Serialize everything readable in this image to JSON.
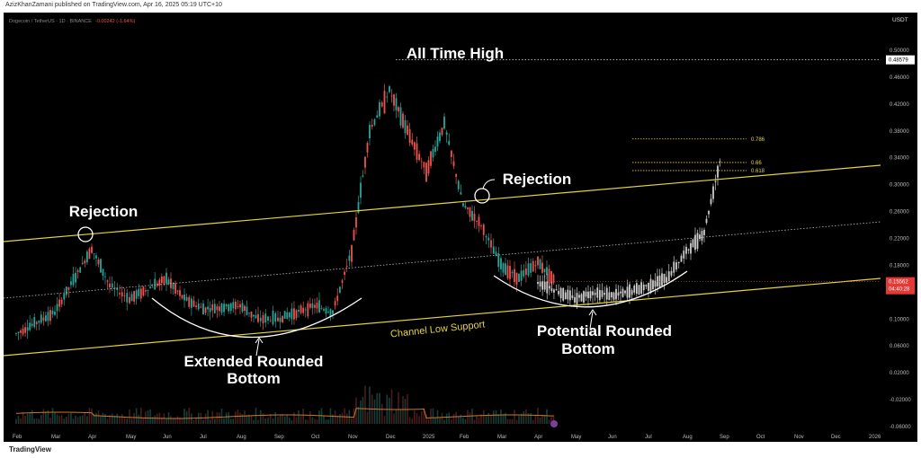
{
  "header": {
    "published_line": "AzizKhanZamani published on TradingView.com, Apr 16, 2025 05:19 UTC+10",
    "symbol_line": "Dogecoin / TetherUS · 1D · BINANCE",
    "change_line": "-0.00242 (-1.64%)"
  },
  "footer": {
    "brand": "TradingView"
  },
  "colors": {
    "up": "#26a69a",
    "down": "#ef5350",
    "projection": "#cccccc",
    "channel": "#e8d43a",
    "annotation": "#ffffff",
    "price_tag": "#e53935",
    "volume_ma": "#c77a2a"
  },
  "chart_data": {
    "type": "candlestick",
    "currency": "USDT",
    "x_labels": [
      "Feb",
      "Mar",
      "Apr",
      "May",
      "Jun",
      "Jul",
      "Aug",
      "Sep",
      "Oct",
      "Nov",
      "Dec",
      "2025",
      "Feb",
      "Mar",
      "Apr",
      "May",
      "Jun",
      "Jul",
      "Aug",
      "Sep",
      "Oct",
      "Nov",
      "Dec",
      "2026"
    ],
    "y_ticks": [
      "0.50000",
      "0.46000",
      "0.42000",
      "0.38000",
      "0.34000",
      "0.30000",
      "0.26000",
      "0.22000",
      "0.18000",
      "0.14000",
      "0.10000",
      "0.06000",
      "0.02000",
      "-0.02000",
      "-0.06000"
    ],
    "current_price": "0.15562",
    "countdown": "04:40:28",
    "ath_price": "0.48579",
    "price_path": [
      [
        "Feb",
        0.078
      ],
      [
        "Mar",
        0.11
      ],
      [
        "Apr",
        0.205
      ],
      [
        "Apr",
        0.15
      ],
      [
        "May",
        0.13
      ],
      [
        "Jun",
        0.16
      ],
      [
        "Jun",
        0.13
      ],
      [
        "Jul",
        0.115
      ],
      [
        "Aug",
        0.12
      ],
      [
        "Aug",
        0.1
      ],
      [
        "Sep",
        0.1
      ],
      [
        "Oct",
        0.12
      ],
      [
        "Oct",
        0.11
      ],
      [
        "Nov",
        0.2
      ],
      [
        "Nov",
        0.38
      ],
      [
        "Dec",
        0.44
      ],
      [
        "Dec",
        0.38
      ],
      [
        "2025",
        0.32
      ],
      [
        "2025",
        0.39
      ],
      [
        "Feb",
        0.27
      ],
      [
        "Feb",
        0.24
      ],
      [
        "Mar",
        0.18
      ],
      [
        "Mar",
        0.16
      ],
      [
        "Apr",
        0.185
      ],
      [
        "Apr",
        0.155
      ]
    ],
    "projection_path": [
      [
        "Apr",
        0.155
      ],
      [
        "May",
        0.13
      ],
      [
        "May",
        0.14
      ],
      [
        "Jun",
        0.135
      ],
      [
        "Jun",
        0.14
      ],
      [
        "Jul",
        0.15
      ],
      [
        "Jul",
        0.16
      ],
      [
        "Aug",
        0.2
      ],
      [
        "Aug",
        0.23
      ],
      [
        "Aug",
        0.35
      ]
    ],
    "fib_levels": [
      {
        "label": "0.786",
        "value": 0.368
      },
      {
        "label": "0.66",
        "value": 0.333
      },
      {
        "label": "0.618",
        "value": 0.321
      }
    ],
    "annotations": {
      "ath": "All Time High",
      "rejection1": "Rejection",
      "rejection2": "Rejection",
      "channel_support": "Channel Low Support",
      "bottom1_line1": "Extended Rounded",
      "bottom1_line2": "Bottom",
      "bottom2_line1": "Potential Rounded",
      "bottom2_line2": "Bottom"
    }
  }
}
